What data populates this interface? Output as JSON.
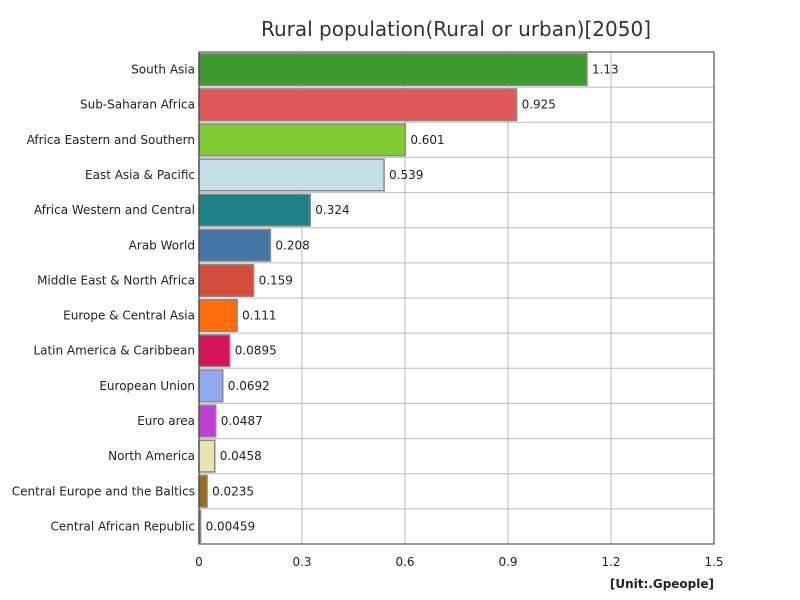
{
  "chart_data": {
    "type": "bar",
    "orientation": "horizontal",
    "title": "Rural population(Rural or urban)[2050]",
    "unit": "[Unit:.Gpeople]",
    "xlim": [
      0,
      1.5
    ],
    "xticks": [
      "0",
      "0.3",
      "0.6",
      "0.9",
      "1.2",
      "1.5"
    ],
    "grid": true,
    "categories": [
      "South Asia",
      "Sub-Saharan Africa",
      "Africa Eastern and Southern",
      "East Asia & Pacific",
      "Africa Western and Central",
      "Arab World",
      "Middle East & North Africa",
      "Europe & Central Asia",
      "Latin America & Caribbean",
      "European Union",
      "Euro area",
      "North America",
      "Central Europe and the Baltics",
      "Central African Republic"
    ],
    "values": [
      1.13,
      0.925,
      0.601,
      0.539,
      0.324,
      0.208,
      0.159,
      0.111,
      0.0895,
      0.0692,
      0.0487,
      0.0458,
      0.0235,
      0.00459
    ],
    "value_labels": [
      "1.13",
      "0.925",
      "0.601",
      "0.539",
      "0.324",
      "0.208",
      "0.159",
      "0.111",
      "0.0895",
      "0.0692",
      "0.0487",
      "0.0458",
      "0.0235",
      "0.00459"
    ],
    "colors": [
      "#3d9a2e",
      "#e05a5a",
      "#80cc30",
      "#c4dfe6",
      "#1f8088",
      "#4576a6",
      "#d24d3a",
      "#ff6e0a",
      "#d4145a",
      "#8faaee",
      "#bf3fd4",
      "#e8e4b4",
      "#9c6c14",
      "#b0b0b0"
    ]
  }
}
